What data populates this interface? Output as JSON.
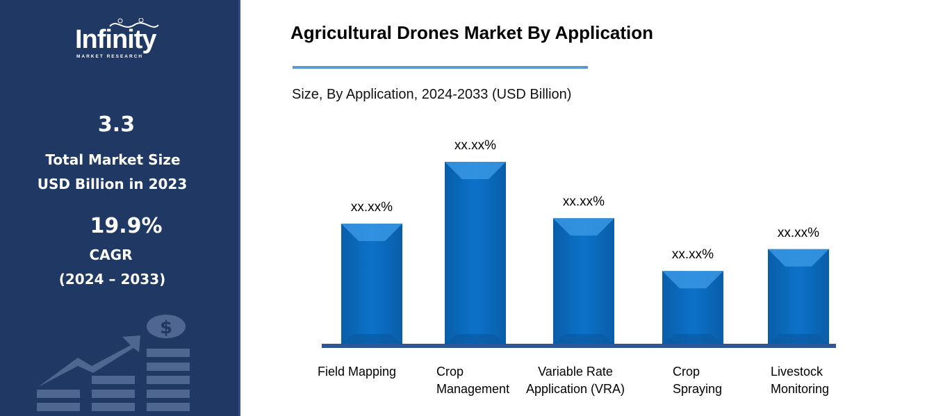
{
  "sidebar": {
    "logo_text": "Infinity",
    "logo_subtext": "MARKET RESEARCH",
    "market_size": "3.3",
    "market_size_label_1": "Total Market Size",
    "market_size_label_2": "USD Billion in 2023",
    "cagr": "19.9%",
    "cagr_label": "CAGR",
    "cagr_period": "(2024 – 2033)",
    "background_color": "#203864"
  },
  "header": {
    "title": "Agricultural Drones Market By Application",
    "subtitle": "Size, By Application, 2024-2033 (USD Billion)"
  },
  "chart_data": {
    "type": "bar",
    "title": "Agricultural Drones Market By Application",
    "subtitle": "Size, By Application, 2024-2033 (USD Billion)",
    "categories": [
      [
        "Field Mapping"
      ],
      [
        "Crop",
        "Management"
      ],
      [
        "Variable Rate",
        "Application (VRA)"
      ],
      [
        "Crop",
        "Spraying"
      ],
      [
        "Livestock",
        "Monitoring"
      ]
    ],
    "values": [
      0.66,
      1.0,
      0.69,
      0.4,
      0.52
    ],
    "data_labels": [
      "xx.xx%",
      "xx.xx%",
      "xx.xx%",
      "xx.xx%",
      "xx.xx%"
    ],
    "axes_visible": false,
    "grid": false,
    "bar_color": "#0a6fc2",
    "baseline_color": "#2f5597"
  }
}
